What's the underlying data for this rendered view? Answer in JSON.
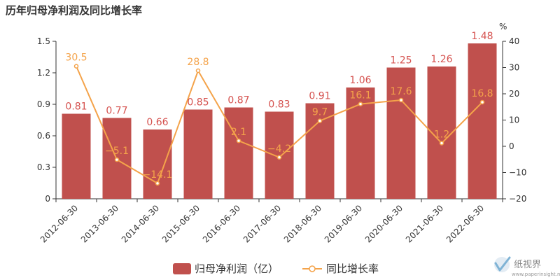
{
  "chart_data": {
    "type": "bar",
    "title": "历年归母净利润及同比增长率",
    "categories": [
      "2012-06-30",
      "2013-06-30",
      "2014-06-30",
      "2015-06-30",
      "2016-06-30",
      "2017-06-30",
      "2018-06-30",
      "2019-06-30",
      "2020-06-30",
      "2021-06-30",
      "2022-06-30"
    ],
    "series": [
      {
        "name": "归母净利润（亿）",
        "type": "bar",
        "axis": "left",
        "color": "#c0504d",
        "label_color": "#d5524f",
        "values": [
          0.81,
          0.77,
          0.66,
          0.85,
          0.87,
          0.83,
          0.91,
          1.06,
          1.25,
          1.26,
          1.48
        ],
        "labels": [
          "0.81",
          "0.77",
          "0.66",
          "0.85",
          "0.87",
          "0.83",
          "0.91",
          "1.06",
          "1.25",
          "1.26",
          "1.48"
        ]
      },
      {
        "name": "同比增长率",
        "type": "line",
        "axis": "right",
        "color": "#f4a34a",
        "values": [
          30.5,
          -5.1,
          -14.1,
          28.8,
          2.1,
          -4.2,
          9.7,
          16.1,
          17.6,
          1.2,
          16.8
        ],
        "labels": [
          "30.5",
          "−5.1",
          "−14.1",
          "28.8",
          "2.1",
          "−4.2",
          "9.7",
          "16.1",
          "17.6",
          "1.2",
          "16.8"
        ]
      }
    ],
    "y_left": {
      "min": 0,
      "max": 1.5,
      "ticks": [
        "0",
        "0.3",
        "0.6",
        "0.9",
        "1.2",
        "1.5"
      ],
      "tick_values": [
        0,
        0.3,
        0.6,
        0.9,
        1.2,
        1.5
      ]
    },
    "y_right": {
      "min": -20,
      "max": 40,
      "unit": "%",
      "ticks": [
        "−20",
        "−10",
        "0",
        "10",
        "20",
        "30",
        "40"
      ],
      "tick_values": [
        -20,
        -10,
        0,
        10,
        20,
        30,
        40
      ]
    },
    "grid": false,
    "legend": "bottom-center"
  },
  "legend": {
    "bar_label": "归母净利润（亿）",
    "line_label": "同比增长率"
  },
  "watermark": {
    "brand": "纸视界",
    "url": "www.paperinsight.net"
  }
}
